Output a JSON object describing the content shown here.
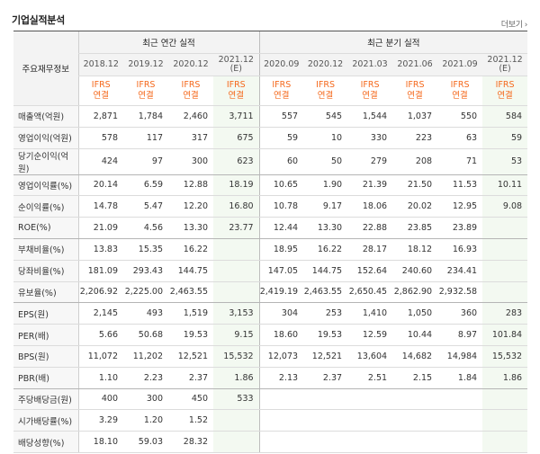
{
  "header": {
    "title": "기업실적분석",
    "more_label": "더보기",
    "more_arrow": "›"
  },
  "table": {
    "row_header_label": "주요재무정보",
    "annual_group_label": "최근 연간 실적",
    "quarter_group_label": "최근 분기 실적",
    "annual_periods": [
      "2018.12",
      "2019.12",
      "2020.12",
      "2021.12 (E)"
    ],
    "quarter_periods": [
      "2020.09",
      "2020.12",
      "2021.03",
      "2021.06",
      "2021.09",
      "2021.12 (E)"
    ],
    "ifrs_label": "IFRS",
    "consolidated_label": "연결",
    "rows": [
      {
        "label": "매출액(억원)",
        "values": [
          "2,871",
          "1,784",
          "2,460",
          "3,711",
          "557",
          "545",
          "1,544",
          "1,037",
          "550",
          "584"
        ]
      },
      {
        "label": "영업이익(억원)",
        "values": [
          "578",
          "117",
          "317",
          "675",
          "59",
          "10",
          "330",
          "223",
          "63",
          "59"
        ]
      },
      {
        "label": "당기순이익(억원)",
        "values": [
          "424",
          "97",
          "300",
          "623",
          "60",
          "50",
          "279",
          "208",
          "71",
          "53"
        ]
      },
      {
        "label": "영업이익률(%)",
        "values": [
          "20.14",
          "6.59",
          "12.88",
          "18.19",
          "10.65",
          "1.90",
          "21.39",
          "21.50",
          "11.53",
          "10.11"
        ]
      },
      {
        "label": "순이익률(%)",
        "values": [
          "14.78",
          "5.47",
          "12.20",
          "16.80",
          "10.78",
          "9.17",
          "18.06",
          "20.02",
          "12.95",
          "9.08"
        ]
      },
      {
        "label": "ROE(%)",
        "values": [
          "21.09",
          "4.56",
          "13.30",
          "23.77",
          "12.44",
          "13.30",
          "22.88",
          "23.85",
          "23.89",
          ""
        ]
      },
      {
        "label": "부채비율(%)",
        "values": [
          "13.83",
          "15.35",
          "16.22",
          "",
          "18.95",
          "16.22",
          "28.17",
          "18.12",
          "16.93",
          ""
        ]
      },
      {
        "label": "당좌비율(%)",
        "values": [
          "181.09",
          "293.43",
          "144.75",
          "",
          "147.05",
          "144.75",
          "152.64",
          "240.60",
          "234.41",
          ""
        ]
      },
      {
        "label": "유보율(%)",
        "values": [
          "2,206.92",
          "2,225.00",
          "2,463.55",
          "",
          "2,419.19",
          "2,463.55",
          "2,650.45",
          "2,862.90",
          "2,932.58",
          ""
        ]
      },
      {
        "label": "EPS(원)",
        "values": [
          "2,145",
          "493",
          "1,519",
          "3,153",
          "304",
          "253",
          "1,410",
          "1,050",
          "360",
          "283"
        ]
      },
      {
        "label": "PER(배)",
        "values": [
          "5.66",
          "50.68",
          "19.53",
          "9.15",
          "18.60",
          "19.53",
          "12.59",
          "10.44",
          "8.97",
          "101.84"
        ]
      },
      {
        "label": "BPS(원)",
        "values": [
          "11,072",
          "11,202",
          "12,521",
          "15,532",
          "12,073",
          "12,521",
          "13,604",
          "14,682",
          "14,984",
          "15,532"
        ]
      },
      {
        "label": "PBR(배)",
        "values": [
          "1.10",
          "2.23",
          "2.37",
          "1.86",
          "2.13",
          "2.37",
          "2.51",
          "2.15",
          "1.84",
          "1.86"
        ]
      },
      {
        "label": "주당배당금(원)",
        "values": [
          "400",
          "300",
          "450",
          "533",
          "",
          "",
          "",
          "",
          "",
          ""
        ]
      },
      {
        "label": "시가배당률(%)",
        "values": [
          "3.29",
          "1.20",
          "1.52",
          "",
          "",
          "",
          "",
          "",
          "",
          ""
        ]
      },
      {
        "label": "배당성향(%)",
        "values": [
          "18.10",
          "59.03",
          "28.32",
          "",
          "",
          "",
          "",
          "",
          "",
          ""
        ]
      }
    ]
  }
}
